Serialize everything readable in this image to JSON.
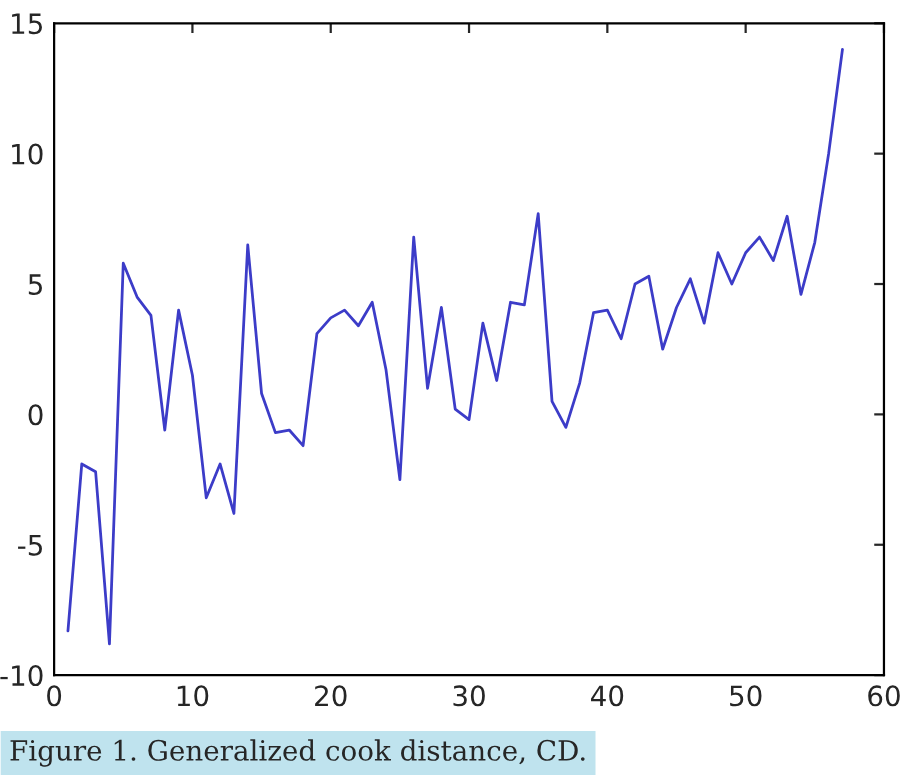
{
  "chart_data": {
    "type": "line",
    "x": [
      1,
      2,
      3,
      4,
      5,
      6,
      7,
      8,
      9,
      10,
      11,
      12,
      13,
      14,
      15,
      16,
      17,
      18,
      19,
      20,
      21,
      22,
      23,
      24,
      25,
      26,
      27,
      28,
      29,
      30,
      31,
      32,
      33,
      34,
      35,
      36,
      37,
      38,
      39,
      40,
      41,
      42,
      43,
      44,
      45,
      46,
      47,
      48,
      49,
      50,
      51,
      52,
      53,
      54,
      55,
      56,
      57
    ],
    "series": [
      {
        "color": "#3c3cc8",
        "values": [
          -8.3,
          -1.9,
          -2.2,
          -8.8,
          5.8,
          4.5,
          3.8,
          -0.6,
          4.0,
          1.5,
          -3.2,
          -1.9,
          -3.8,
          6.5,
          0.8,
          -0.7,
          -0.6,
          -1.2,
          3.1,
          3.7,
          4.0,
          3.4,
          4.3,
          1.7,
          -2.5,
          6.8,
          1.0,
          4.1,
          0.2,
          -0.2,
          3.5,
          1.3,
          4.3,
          4.2,
          7.7,
          0.5,
          -0.5,
          1.2,
          3.9,
          4.0,
          2.9,
          5.0,
          5.3,
          2.5,
          4.1,
          5.2,
          3.5,
          6.2,
          5.0,
          6.2,
          6.8,
          5.9,
          7.6,
          4.6,
          6.6,
          10.0,
          14.0
        ]
      }
    ],
    "xlim": [
      0,
      60
    ],
    "xticks": [
      0,
      10,
      20,
      30,
      40,
      50,
      60
    ],
    "ylim": [
      -10,
      15
    ],
    "yticks": [
      -10,
      -5,
      0,
      5,
      10,
      15
    ],
    "grid": false,
    "marker": "none",
    "line_style": "solid",
    "annotations": [
      "Figure 1. Generalized cook distance, CD."
    ]
  }
}
